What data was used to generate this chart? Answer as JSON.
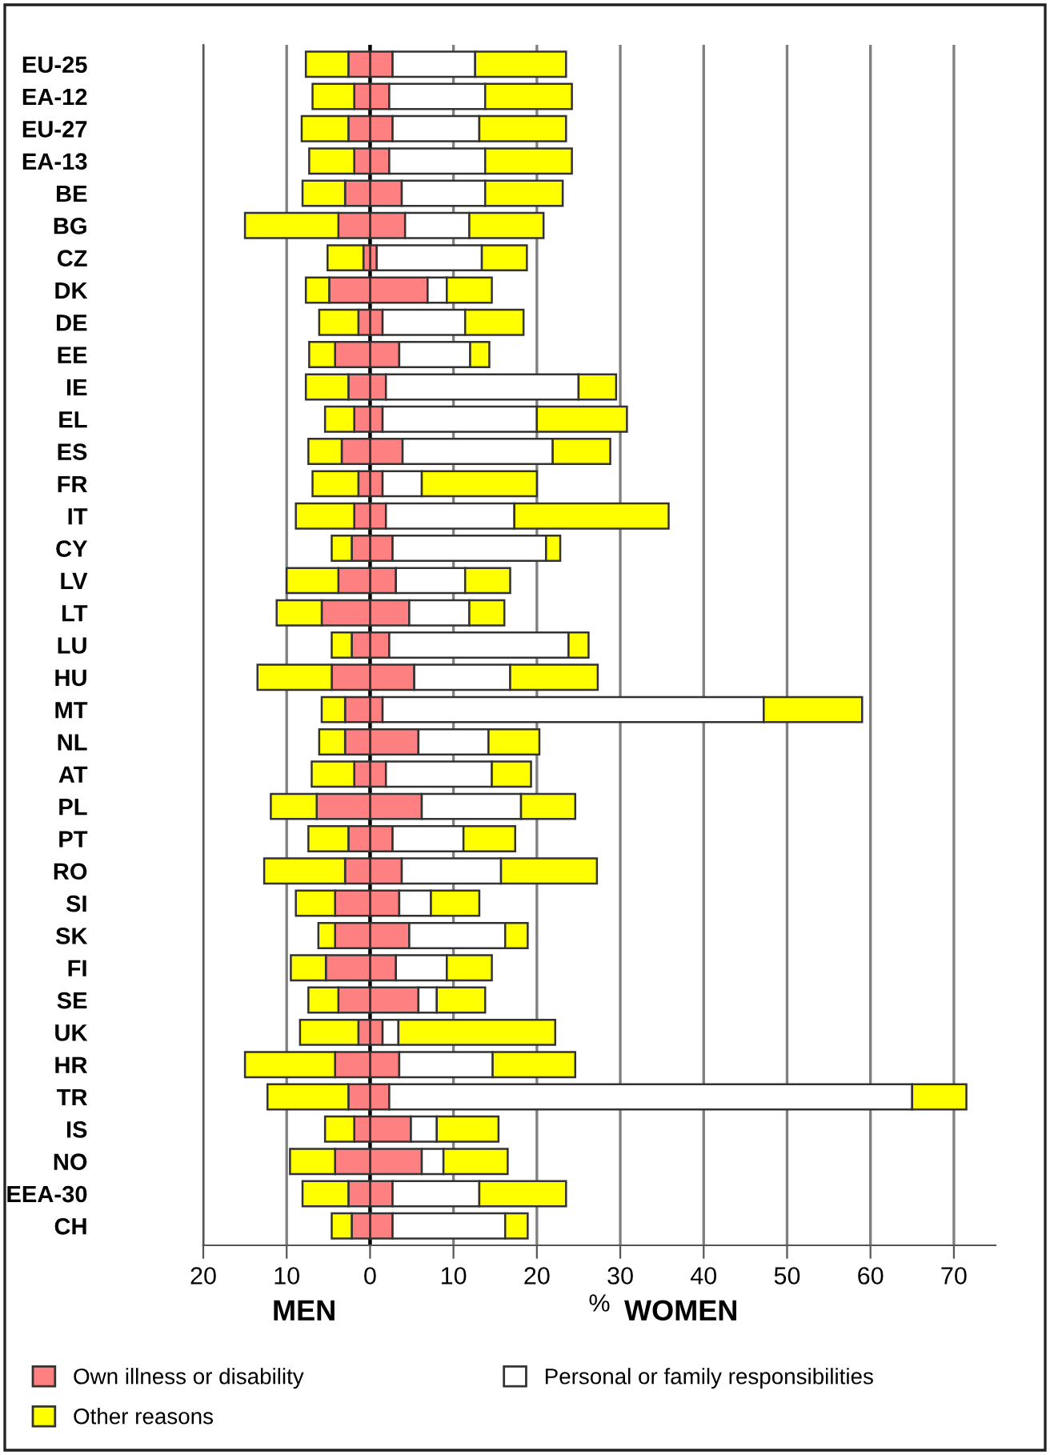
{
  "chart_data": {
    "type": "bar",
    "orientation": "horizontal",
    "stacked": true,
    "xlabel": "%",
    "annotations": [
      "MEN",
      "WOMEN"
    ],
    "categories": [
      "EU-25",
      "EA-12",
      "EU-27",
      "EA-13",
      "BE",
      "BG",
      "CZ",
      "DK",
      "DE",
      "EE",
      "IE",
      "EL",
      "ES",
      "FR",
      "IT",
      "CY",
      "LV",
      "LT",
      "LU",
      "HU",
      "MT",
      "NL",
      "AT",
      "PL",
      "PT",
      "RO",
      "SI",
      "SK",
      "FI",
      "SE",
      "UK",
      "HR",
      "TR",
      "IS",
      "NO",
      "EEA-30",
      "CH"
    ],
    "series": [
      {
        "name": "Own illness or disability",
        "color": "#ff8080",
        "values": [
          2.7,
          2.3,
          2.7,
          2.3,
          3.8,
          4.2,
          0.8,
          6.9,
          1.5,
          3.5,
          1.9,
          1.5,
          3.9,
          1.5,
          1.9,
          2.7,
          3.1,
          4.7,
          2.3,
          5.3,
          1.5,
          5.8,
          1.9,
          6.2,
          2.7,
          3.8,
          3.5,
          4.7,
          3.1,
          5.8,
          1.5,
          3.5,
          2.3,
          4.9,
          6.2,
          2.7,
          2.7
        ]
      },
      {
        "name": "Personal or family responsibilities",
        "color": "#ffffff",
        "values": [
          9.9,
          11.5,
          10.4,
          11.5,
          10.0,
          7.7,
          12.6,
          2.3,
          9.9,
          8.5,
          23.1,
          18.5,
          18.0,
          4.7,
          15.4,
          18.4,
          8.3,
          7.2,
          21.5,
          11.5,
          45.7,
          8.4,
          12.7,
          11.9,
          8.5,
          11.9,
          3.8,
          11.5,
          6.1,
          2.2,
          1.9,
          11.2,
          62.7,
          3.1,
          2.6,
          10.4,
          13.5
        ]
      },
      {
        "name": "Other reasons",
        "color": "#ffff00",
        "values": [
          10.9,
          10.4,
          10.4,
          10.4,
          9.3,
          8.9,
          5.4,
          5.4,
          7.0,
          2.3,
          4.5,
          10.8,
          6.9,
          13.8,
          18.5,
          1.7,
          5.4,
          4.2,
          2.4,
          10.5,
          11.8,
          6.1,
          4.7,
          6.5,
          6.2,
          11.5,
          5.8,
          2.7,
          5.4,
          5.8,
          18.8,
          9.9,
          6.5,
          7.4,
          7.7,
          10.4,
          2.7
        ]
      },
      {
        "color": "#ff8080",
        "values": [
          -2.6,
          -1.9,
          -2.6,
          -1.9,
          -3.0,
          -3.8,
          -0.8,
          -4.9,
          -1.4,
          -4.2,
          -2.6,
          -1.9,
          -3.4,
          -1.4,
          -1.9,
          -2.2,
          -3.8,
          -5.8,
          -2.2,
          -4.6,
          -3.0,
          -3.0,
          -1.9,
          -6.4,
          -2.6,
          -3.0,
          -4.2,
          -4.2,
          -5.3,
          -3.8,
          -1.4,
          -4.2,
          -2.6,
          -1.9,
          -4.2,
          -2.6,
          -2.2
        ]
      },
      {
        "color": "#ffff00",
        "values": [
          -5.1,
          -5.0,
          -5.6,
          -5.4,
          -5.1,
          -11.2,
          -4.3,
          -2.8,
          -4.7,
          -3.1,
          -5.1,
          -3.5,
          -4.0,
          -5.5,
          -7.0,
          -2.4,
          -6.2,
          -5.4,
          -2.4,
          -8.9,
          -2.8,
          -3.1,
          -5.1,
          -5.5,
          -4.8,
          -9.7,
          -4.7,
          -2.0,
          -4.2,
          -3.6,
          -7.0,
          -10.8,
          -9.7,
          -3.5,
          -5.4,
          -5.5,
          -2.4
        ]
      }
    ],
    "xlim": [
      -20,
      75
    ],
    "xticks": [
      {
        "value": -20,
        "label": "20"
      },
      {
        "value": -10,
        "label": "10"
      },
      0,
      10,
      20,
      30,
      40,
      50,
      60,
      70
    ],
    "grid": "x",
    "legend": "bottom"
  }
}
